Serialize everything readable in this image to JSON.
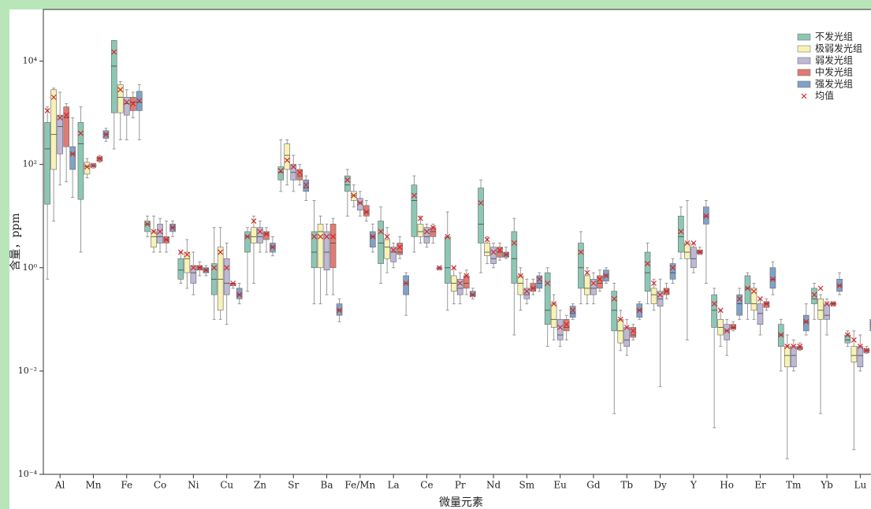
{
  "chart_data": {
    "type": "box",
    "y_label": "含量，ppm",
    "x_label": "微量元素",
    "log_y": true,
    "ylim": [
      0.0001,
      100000
    ],
    "yticks": [
      {
        "value": 0.0001,
        "label": "10⁻⁴"
      },
      {
        "value": 0.01,
        "label": "10⁻²"
      },
      {
        "value": 1,
        "label": "10⁰"
      },
      {
        "value": 100,
        "label": "10²"
      },
      {
        "value": 10000,
        "label": "10⁴"
      }
    ],
    "categories": [
      "Al",
      "Mn",
      "Fe",
      "Co",
      "Ni",
      "Cu",
      "Zn",
      "Sr",
      "Ba",
      "Fe/Mn",
      "La",
      "Ce",
      "Pr",
      "Nd",
      "Sm",
      "Eu",
      "Gd",
      "Tb",
      "Dy",
      "Y",
      "Ho",
      "Er",
      "Tm",
      "Yb",
      "Lu"
    ],
    "legend_position": "upper right",
    "mean_label": "均值",
    "mean_color": "#d62728",
    "series": [
      {
        "name": "不发光组",
        "color": "#8cc7b5",
        "values": [
          [
            0.6,
            17,
            200,
            650,
            1300,
            1100
          ],
          [
            2,
            21,
            250,
            650,
            1300,
            400
          ],
          [
            200,
            1000,
            8000,
            25000,
            25000,
            15000
          ],
          [
            4,
            5,
            7,
            8,
            10,
            7
          ],
          [
            0.5,
            0.6,
            0.9,
            1.5,
            2,
            2
          ],
          [
            0.1,
            0.3,
            0.6,
            1.2,
            6,
            1
          ],
          [
            0.35,
            2,
            4,
            5,
            6,
            4
          ],
          [
            30,
            50,
            70,
            90,
            300,
            75
          ],
          [
            0.2,
            1,
            2,
            5,
            20,
            4
          ],
          [
            10,
            30,
            40,
            60,
            80,
            50
          ],
          [
            0.5,
            1.2,
            3,
            8,
            15,
            5
          ],
          [
            2,
            4,
            20,
            40,
            60,
            25
          ],
          [
            0.15,
            0.5,
            1,
            4,
            12,
            4
          ],
          [
            0.8,
            3,
            7,
            35,
            50,
            18
          ],
          [
            0.05,
            0.5,
            1.5,
            5,
            9,
            3
          ],
          [
            0.03,
            0.08,
            0.15,
            0.8,
            1,
            0.5
          ],
          [
            0.2,
            0.4,
            1,
            3,
            5,
            2
          ],
          [
            0.0015,
            0.06,
            0.15,
            0.35,
            0.5,
            0.25
          ],
          [
            0.2,
            0.35,
            0.8,
            2,
            3,
            1.2
          ],
          [
            1.5,
            2,
            4,
            10,
            15,
            5
          ],
          [
            0.0008,
            0.07,
            0.15,
            0.3,
            0.4,
            0.2
          ],
          [
            0.1,
            0.2,
            0.4,
            0.7,
            0.8,
            0.4
          ],
          [
            0.01,
            0.03,
            0.05,
            0.08,
            0.1,
            0.05
          ],
          [
            0.1,
            0.2,
            0.25,
            0.4,
            0.5,
            0.3
          ],
          [
            0.03,
            0.035,
            0.04,
            0.05,
            0.06,
            0.05
          ]
        ]
      },
      {
        "name": "极弱发光组",
        "color": "#f7f2b5",
        "values": [
          [
            8,
            80,
            380,
            2800,
            3000,
            2000
          ],
          [
            55,
            65,
            90,
            110,
            130,
            90
          ],
          [
            300,
            1000,
            2000,
            3500,
            4000,
            2800
          ],
          [
            2,
            2.5,
            4,
            5,
            10,
            5
          ],
          [
            0.4,
            0.8,
            1.5,
            2,
            3.5,
            1.8
          ],
          [
            0.1,
            0.15,
            0.6,
            2.5,
            6,
            2
          ],
          [
            0.5,
            3,
            4,
            6,
            10,
            8
          ],
          [
            40,
            80,
            150,
            250,
            300,
            120
          ],
          [
            0.2,
            1,
            5,
            7,
            10,
            4
          ],
          [
            15,
            20,
            25,
            30,
            40,
            25
          ],
          [
            0.8,
            1.5,
            2.5,
            3.5,
            6,
            4
          ],
          [
            3,
            4,
            5,
            7,
            10,
            9
          ],
          [
            0.2,
            0.35,
            0.5,
            0.7,
            1,
            1
          ],
          [
            1.2,
            1.7,
            2,
            3,
            4,
            3.5
          ],
          [
            0.15,
            0.3,
            0.5,
            0.7,
            1,
            0.7
          ],
          [
            0.04,
            0.07,
            0.1,
            0.2,
            0.3,
            0.2
          ],
          [
            0.2,
            0.3,
            0.4,
            0.7,
            1,
            0.8
          ],
          [
            0.025,
            0.035,
            0.06,
            0.1,
            0.15,
            0.1
          ],
          [
            0.15,
            0.2,
            0.3,
            0.4,
            0.6,
            0.5
          ],
          [
            0.04,
            1.5,
            2,
            3,
            20,
            3
          ],
          [
            0.03,
            0.05,
            0.07,
            0.1,
            0.15,
            0.15
          ],
          [
            0.1,
            0.15,
            0.2,
            0.4,
            0.5,
            0.35
          ],
          [
            0.0002,
            0.012,
            0.02,
            0.03,
            0.05,
            0.03
          ],
          [
            0.0015,
            0.1,
            0.15,
            0.25,
            0.3,
            0.4
          ],
          [
            0.0003,
            0.015,
            0.02,
            0.03,
            0.06,
            0.04
          ]
        ]
      },
      {
        "name": "弱发光组",
        "color": "#bdb8d6",
        "values": [
          [
            40,
            160,
            540,
            900,
            2500,
            800
          ],
          [
            85,
            90,
            95,
            100,
            105,
            95
          ],
          [
            300,
            900,
            1500,
            2000,
            2800,
            1600
          ],
          [
            2,
            3,
            4,
            7,
            9,
            5
          ],
          [
            0.3,
            0.5,
            0.8,
            1.1,
            2,
            1
          ],
          [
            0.08,
            0.3,
            0.5,
            1.5,
            3,
            1
          ],
          [
            2,
            3,
            4,
            6,
            8,
            5
          ],
          [
            30,
            50,
            70,
            100,
            150,
            90
          ],
          [
            0.3,
            0.9,
            2,
            5,
            7,
            4
          ],
          [
            10,
            13,
            18,
            22,
            30,
            18
          ],
          [
            1,
            1.3,
            2,
            2.5,
            3,
            2.2
          ],
          [
            2.5,
            3,
            4,
            6,
            7,
            5
          ],
          [
            0.2,
            0.3,
            0.4,
            0.6,
            0.8,
            0.5
          ],
          [
            1,
            1.2,
            1.5,
            2.5,
            3,
            2
          ],
          [
            0.2,
            0.25,
            0.3,
            0.4,
            0.6,
            0.35
          ],
          [
            0.03,
            0.04,
            0.05,
            0.1,
            0.15,
            0.07
          ],
          [
            0.2,
            0.3,
            0.4,
            0.6,
            0.8,
            0.5
          ],
          [
            0.02,
            0.03,
            0.04,
            0.07,
            0.1,
            0.07
          ],
          [
            0.005,
            0.18,
            0.25,
            0.35,
            0.6,
            0.3
          ],
          [
            0.8,
            1,
            1.5,
            2.5,
            3,
            3
          ],
          [
            0.02,
            0.04,
            0.06,
            0.08,
            0.1,
            0.06
          ],
          [
            0.05,
            0.08,
            0.13,
            0.2,
            0.25,
            0.25
          ],
          [
            0.01,
            0.012,
            0.02,
            0.03,
            0.04,
            0.03
          ],
          [
            0.05,
            0.1,
            0.12,
            0.2,
            0.25,
            0.2
          ],
          [
            0.01,
            0.012,
            0.02,
            0.03,
            0.05,
            0.03
          ]
        ]
      },
      {
        "name": "中发光组",
        "color": "#e07b74",
        "values": [
          [
            46,
            220,
            800,
            1300,
            1500,
            900
          ],
          [
            110,
            115,
            130,
            140,
            150,
            130
          ],
          [
            800,
            1100,
            1600,
            2000,
            2500,
            1500
          ],
          [
            2,
            3,
            3.5,
            4,
            8,
            3.5
          ],
          [
            0.7,
            0.9,
            1,
            1.1,
            1.3,
            1
          ],
          [
            0.4,
            0.45,
            0.5,
            0.5,
            0.5,
            0.5
          ],
          [
            2,
            3.5,
            4.5,
            5,
            6,
            4.5
          ],
          [
            40,
            50,
            60,
            80,
            100,
            70
          ],
          [
            0.3,
            1,
            3,
            7,
            9,
            4
          ],
          [
            8,
            10,
            12,
            16,
            20,
            12
          ],
          [
            1.5,
            1.8,
            2,
            3,
            4,
            2.5
          ],
          [
            3,
            4,
            5,
            6,
            7,
            6
          ],
          [
            0.3,
            0.4,
            0.5,
            0.7,
            0.9,
            0.7
          ],
          [
            1.4,
            1.6,
            2,
            2.5,
            3,
            2.2
          ],
          [
            0.3,
            0.35,
            0.4,
            0.5,
            0.6,
            0.4
          ],
          [
            0.04,
            0.06,
            0.07,
            0.1,
            0.12,
            0.08
          ],
          [
            0.35,
            0.4,
            0.5,
            0.7,
            0.9,
            0.6
          ],
          [
            0.04,
            0.045,
            0.05,
            0.07,
            0.08,
            0.06
          ],
          [
            0.25,
            0.3,
            0.35,
            0.4,
            0.5,
            0.35
          ],
          [
            1.8,
            1.9,
            2,
            2.2,
            2.5,
            2
          ],
          [
            0.06,
            0.065,
            0.07,
            0.08,
            0.09,
            0.07
          ],
          [
            0.15,
            0.17,
            0.2,
            0.22,
            0.25,
            0.2
          ],
          [
            0.025,
            0.026,
            0.028,
            0.03,
            0.035,
            0.03
          ],
          [
            0.18,
            0.19,
            0.2,
            0.21,
            0.22,
            0.2
          ],
          [
            0.022,
            0.023,
            0.025,
            0.027,
            0.03,
            0.025
          ]
        ]
      },
      {
        "name": "强发光组",
        "color": "#7fa2c7",
        "values": [
          [
            23,
            80,
            160,
            220,
            800,
            160
          ],
          [
            280,
            320,
            380,
            450,
            500,
            380
          ],
          [
            300,
            1100,
            1600,
            2600,
            3500,
            1700
          ],
          [
            4,
            5,
            6,
            7,
            8,
            6
          ],
          [
            0.7,
            0.8,
            0.9,
            1,
            1.1,
            0.9
          ],
          [
            0.2,
            0.25,
            0.3,
            0.4,
            0.5,
            0.3
          ],
          [
            1.7,
            2,
            2.5,
            3,
            4,
            2.5
          ],
          [
            20,
            30,
            35,
            50,
            60,
            40
          ],
          [
            0.09,
            0.12,
            0.15,
            0.2,
            0.25,
            0.15
          ],
          [
            2,
            2.5,
            4,
            5,
            7,
            4
          ],
          [
            0.12,
            0.3,
            0.5,
            0.7,
            0.8,
            0.5
          ],
          [
            0.9,
            0.95,
            1,
            1,
            1.05,
            1
          ],
          [
            0.25,
            0.28,
            0.3,
            0.35,
            0.4,
            0.3
          ],
          [
            1.5,
            1.6,
            1.8,
            2,
            2.5,
            1.8
          ],
          [
            0.35,
            0.4,
            0.5,
            0.7,
            0.8,
            0.6
          ],
          [
            0.1,
            0.11,
            0.13,
            0.18,
            0.2,
            0.15
          ],
          [
            0.5,
            0.55,
            0.7,
            0.9,
            1,
            0.7
          ],
          [
            0.1,
            0.11,
            0.15,
            0.2,
            0.22,
            0.15
          ],
          [
            0.5,
            0.6,
            0.8,
            1.2,
            1.5,
            1
          ],
          [
            0.5,
            7,
            10,
            15,
            20,
            10
          ],
          [
            0.1,
            0.12,
            0.2,
            0.3,
            0.4,
            0.25
          ],
          [
            0.3,
            0.4,
            0.6,
            1,
            1.3,
            0.6
          ],
          [
            0.05,
            0.06,
            0.09,
            0.12,
            0.2,
            0.09
          ],
          [
            0.3,
            0.35,
            0.45,
            0.6,
            0.8,
            0.45
          ],
          [
            0.05,
            0.06,
            0.08,
            0.1,
            0.12,
            0.08
          ]
        ]
      }
    ]
  }
}
